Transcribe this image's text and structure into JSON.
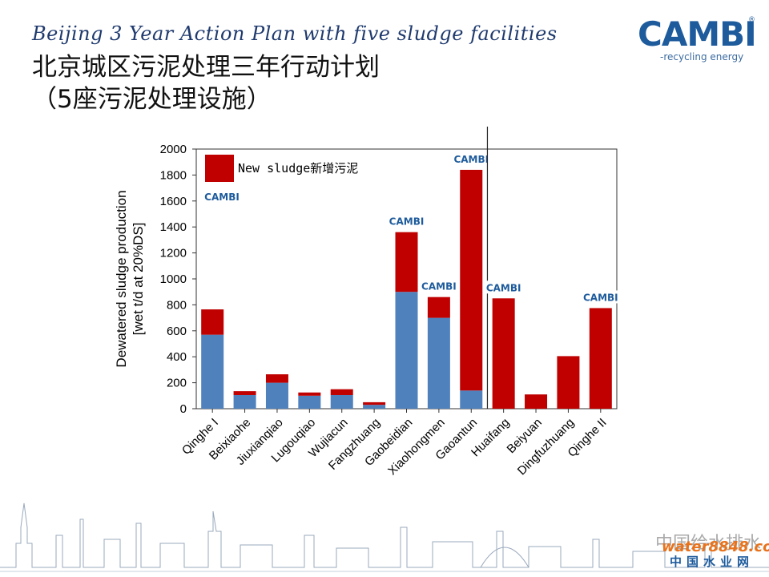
{
  "slide": {
    "title_en": "Beijing 3 Year Action Plan with five sludge facilities",
    "title_cn": "北京城区污泥处理三年行动计划",
    "subtitle_cn": "（5座污泥处理设施）",
    "logo_text": "CAMBI",
    "logo_tagline": "-recycling energy",
    "logo_reg": "®",
    "watermark": "中国给水排水",
    "watermark_brand": "water8848.com",
    "watermark_site": "中国水业网"
  },
  "colors": {
    "existing": "#4f81bd",
    "new": "#c00000",
    "title": "#1f3a6e",
    "logo": "#1e5b9c"
  },
  "chart_data": {
    "type": "bar",
    "stacked": true,
    "categories": [
      "Qinghe I",
      "Beixiaohe",
      "Jiuxianqiao",
      "Lugouqiao",
      "Wujiacun",
      "Fangzhuang",
      "Gaobeidian",
      "Xiaohongmen",
      "Gaoantun",
      "Huaifang",
      "Beiyuan",
      "Dingfuzhuang",
      "Qinghe II"
    ],
    "series": [
      {
        "name": "",
        "color": "#4f81bd",
        "values": [
          570,
          105,
          200,
          100,
          105,
          30,
          900,
          700,
          140,
          0,
          0,
          0,
          0
        ]
      },
      {
        "name": "New sludge新增污泥",
        "color": "#c00000",
        "values": [
          195,
          30,
          65,
          25,
          45,
          20,
          460,
          160,
          1700,
          850,
          110,
          405,
          775
        ]
      }
    ],
    "ylabel": "Dewatered sludge production",
    "ylabel2": "[wet t/d at 20%DS]",
    "ylim": [
      0,
      2000
    ],
    "yticks": [
      0,
      200,
      400,
      600,
      800,
      1000,
      1200,
      1400,
      1600,
      1800,
      2000
    ],
    "cambi_badges_at": [
      "Gaobeidian",
      "Xiaohongmen",
      "Gaoantun",
      "Huaifang",
      "Qinghe II"
    ],
    "legend_badge": true,
    "divider_after": "Gaoantun",
    "legend_position": "top-left",
    "grid": false,
    "badge_text": "CAMBI"
  }
}
